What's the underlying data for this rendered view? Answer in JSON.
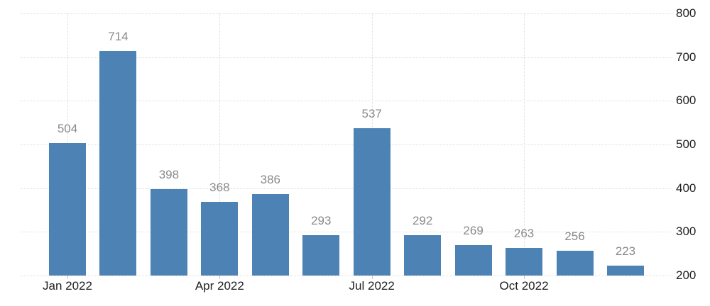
{
  "chart_data": {
    "type": "bar",
    "title": "",
    "xlabel": "",
    "ylabel": "",
    "values": [
      504,
      714,
      398,
      368,
      386,
      293,
      537,
      292,
      269,
      263,
      256,
      223
    ],
    "bar_value_labels": [
      "504",
      "714",
      "398",
      "368",
      "386",
      "293",
      "537",
      "292",
      "269",
      "263",
      "256",
      "223"
    ],
    "x_ticks": [
      {
        "label": "Jan 2022",
        "bar_index": 0
      },
      {
        "label": "Apr 2022",
        "bar_index": 3
      },
      {
        "label": "Jul 2022",
        "bar_index": 6
      },
      {
        "label": "Oct 2022",
        "bar_index": 9
      }
    ],
    "y_ticks": [
      200,
      300,
      400,
      500,
      600,
      700,
      800
    ],
    "ylim": [
      200,
      800
    ],
    "grid": "dotted horizontal lines at each y tick, dotted vertical lines at quarter ticks",
    "legend": "none",
    "y_axis_position": "right",
    "colors": {
      "bar": "#4d82b4",
      "bar_value_label": "#8a8a8a",
      "axis_label": "#1f1f1f",
      "gridline": "#dcdcdc",
      "background": "#ffffff"
    }
  }
}
